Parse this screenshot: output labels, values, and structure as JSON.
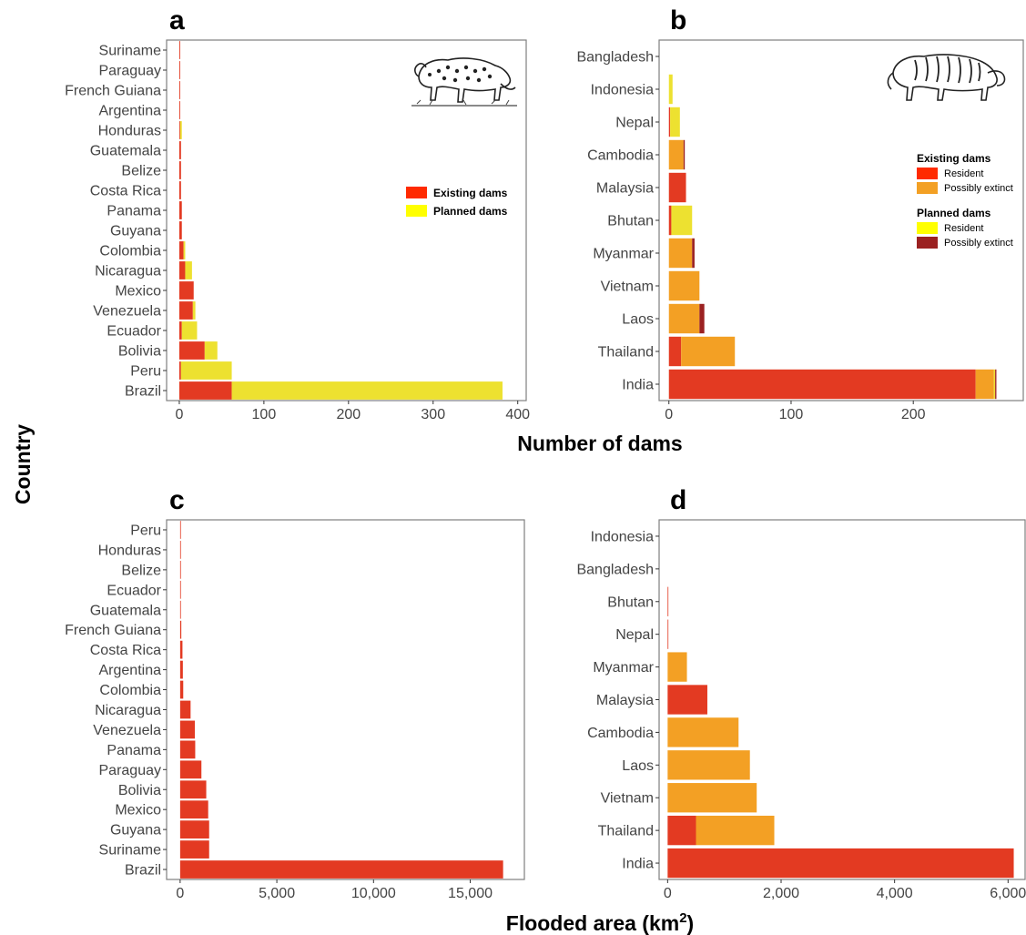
{
  "figure": {
    "x_title_top": "Number of dams",
    "x_title_bottom": "Flooded area (km",
    "x_title_bottom_sup": "2",
    "x_title_bottom_close": ")",
    "y_title": "Country"
  },
  "colors": {
    "existing_resident": "#e33a22",
    "existing_extinct": "#f3a024",
    "planned_resident": "#ede130",
    "planned_extinct": "#9b2121",
    "a_existing": "#e33a22",
    "a_planned": "#ede130",
    "legend_existing": "#ff2a00",
    "legend_planned": "#ffff00"
  },
  "chart_data": [
    {
      "id": "a",
      "type": "bar",
      "panel_label": "a",
      "stacked": true,
      "orientation": "horizontal",
      "categories": [
        "Brazil",
        "Peru",
        "Bolivia",
        "Ecuador",
        "Venezuela",
        "Mexico",
        "Nicaragua",
        "Colombia",
        "Guyana",
        "Panama",
        "Costa Rica",
        "Belize",
        "Guatemala",
        "Honduras",
        "Argentina",
        "French Guiana",
        "Paraguay",
        "Suriname"
      ],
      "series": [
        {
          "name": "Existing dams",
          "color_key": "a_existing",
          "values": [
            62,
            2,
            30,
            3,
            16,
            17,
            7,
            5,
            3,
            3,
            2,
            2,
            2,
            1,
            1,
            1,
            1,
            1
          ]
        },
        {
          "name": "Planned dams",
          "color_key": "a_planned",
          "values": [
            320,
            60,
            15,
            18,
            3,
            0,
            8,
            2,
            0,
            0,
            0,
            0,
            0,
            2,
            0,
            0,
            0,
            0
          ]
        }
      ],
      "xlim": [
        -15,
        410
      ],
      "xticks": [
        0,
        100,
        200,
        300,
        400
      ],
      "xtick_labels": [
        "0",
        "100",
        "200",
        "300",
        "400"
      ],
      "legend": {
        "position": "right",
        "items": [
          {
            "label": "Existing dams",
            "color_key": "legend_existing"
          },
          {
            "label": "Planned dams",
            "color_key": "legend_planned"
          }
        ]
      },
      "grid": false
    },
    {
      "id": "b",
      "type": "bar",
      "panel_label": "b",
      "stacked": true,
      "orientation": "horizontal",
      "categories": [
        "India",
        "Thailand",
        "Laos",
        "Vietnam",
        "Myanmar",
        "Bhutan",
        "Malaysia",
        "Cambodia",
        "Nepal",
        "Indonesia",
        "Bangladesh"
      ],
      "series": [
        {
          "name": "Existing dams — Resident",
          "color_key": "existing_resident",
          "values": [
            251,
            10,
            0,
            0,
            0,
            2,
            14,
            0,
            1,
            0,
            0
          ]
        },
        {
          "name": "Existing dams — Possibly extinct",
          "color_key": "existing_extinct",
          "values": [
            15,
            44,
            25,
            25,
            19,
            0,
            0,
            12,
            0,
            0,
            0
          ]
        },
        {
          "name": "Planned dams — Resident",
          "color_key": "planned_resident",
          "values": [
            1,
            0,
            0,
            0,
            0,
            17,
            0,
            0,
            8,
            3,
            0
          ]
        },
        {
          "name": "Planned dams — Possibly extinct",
          "color_key": "planned_extinct",
          "values": [
            1,
            0,
            4,
            0,
            2,
            0,
            0,
            1,
            0,
            0,
            0
          ]
        }
      ],
      "xlim": [
        -8,
        290
      ],
      "xticks": [
        0,
        100,
        200
      ],
      "xtick_labels": [
        "0",
        "100",
        "200"
      ],
      "legend": {
        "position": "right",
        "groups": [
          {
            "title": "Existing dams",
            "items": [
              {
                "label": "Resident",
                "color_key": "legend_existing"
              },
              {
                "label": "Possibly extinct",
                "color_key": "existing_extinct"
              }
            ]
          },
          {
            "title": "Planned dams",
            "items": [
              {
                "label": "Resident",
                "color_key": "legend_planned"
              },
              {
                "label": "Possibly extinct",
                "color_key": "planned_extinct"
              }
            ]
          }
        ]
      },
      "grid": false
    },
    {
      "id": "c",
      "type": "bar",
      "panel_label": "c",
      "orientation": "horizontal",
      "categories": [
        "Brazil",
        "Suriname",
        "Guyana",
        "Mexico",
        "Bolivia",
        "Paraguay",
        "Panama",
        "Venezuela",
        "Nicaragua",
        "Colombia",
        "Argentina",
        "Costa Rica",
        "French Guiana",
        "Guatemala",
        "Ecuador",
        "Belize",
        "Honduras",
        "Peru"
      ],
      "series": [
        {
          "name": "Existing dams",
          "color_key": "existing_resident",
          "values": [
            16700,
            1500,
            1500,
            1450,
            1350,
            1100,
            780,
            760,
            540,
            160,
            140,
            120,
            60,
            20,
            15,
            10,
            10,
            5
          ]
        }
      ],
      "xlim": [
        -700,
        17800
      ],
      "xticks": [
        0,
        5000,
        10000,
        15000
      ],
      "xtick_labels": [
        "0",
        "5,000",
        "10,000",
        "15,000"
      ],
      "grid": false
    },
    {
      "id": "d",
      "type": "bar",
      "panel_label": "d",
      "stacked": true,
      "orientation": "horizontal",
      "categories": [
        "India",
        "Thailand",
        "Vietnam",
        "Laos",
        "Cambodia",
        "Malaysia",
        "Myanmar",
        "Nepal",
        "Bhutan",
        "Bangladesh",
        "Indonesia"
      ],
      "series": [
        {
          "name": "Resident",
          "color_key": "existing_resident",
          "values": [
            6100,
            500,
            0,
            0,
            0,
            700,
            0,
            2,
            2,
            0,
            0
          ]
        },
        {
          "name": "Possibly extinct",
          "color_key": "existing_extinct",
          "values": [
            0,
            1380,
            1570,
            1450,
            1250,
            0,
            340,
            0,
            0,
            0,
            0
          ]
        }
      ],
      "xlim": [
        -150,
        6300
      ],
      "xticks": [
        0,
        2000,
        4000,
        6000
      ],
      "xtick_labels": [
        "0",
        "2,000",
        "4,000",
        "6,000"
      ],
      "grid": false
    }
  ]
}
